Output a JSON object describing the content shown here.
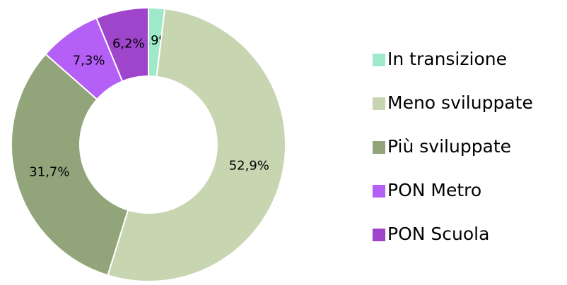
{
  "chart_data": {
    "type": "donut",
    "categories": [
      "In transizione",
      "Meno sviluppate",
      "Più sviluppate",
      "PON Metro",
      "PON Scuola"
    ],
    "values": [
      1.9,
      52.9,
      31.7,
      7.3,
      6.2
    ],
    "value_labels": [
      "1,9%",
      "52,9%",
      "31,7%",
      "7,3%",
      "6,2%"
    ],
    "colors": [
      "#9ee9c9",
      "#c7d5b1",
      "#92a57a",
      "#b45ff5",
      "#9f45cc"
    ],
    "legend": "right"
  }
}
